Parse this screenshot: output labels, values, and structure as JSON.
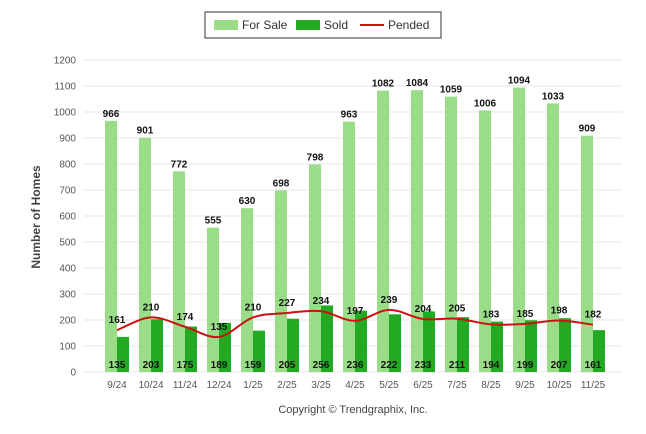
{
  "chart_data": {
    "type": "bar",
    "categories": [
      "9/24",
      "10/24",
      "11/24",
      "12/24",
      "1/25",
      "2/25",
      "3/25",
      "4/25",
      "5/25",
      "6/25",
      "7/25",
      "8/25",
      "9/25",
      "10/25",
      "11/25"
    ],
    "series": [
      {
        "name": "For Sale",
        "kind": "bar",
        "color": "#99dd88",
        "values": [
          966,
          901,
          772,
          555,
          630,
          698,
          798,
          963,
          1082,
          1084,
          1059,
          1006,
          1094,
          1033,
          909
        ]
      },
      {
        "name": "Sold",
        "kind": "bar",
        "color": "#22aa22",
        "values": [
          135,
          203,
          175,
          189,
          159,
          205,
          256,
          236,
          222,
          233,
          211,
          194,
          199,
          207,
          161
        ]
      },
      {
        "name": "Pended",
        "kind": "line",
        "color": "#cc1111",
        "values": [
          161,
          210,
          174,
          135,
          210,
          227,
          234,
          197,
          239,
          204,
          205,
          183,
          185,
          198,
          182
        ]
      }
    ],
    "ylabel": "Number of Homes",
    "ylim": [
      0,
      1200
    ],
    "yticks": [
      0,
      100,
      200,
      300,
      400,
      500,
      600,
      700,
      800,
      900,
      1000,
      1100,
      1200
    ],
    "grid": true,
    "legend_position": "top-center"
  },
  "footer": {
    "copyright": "Copyright © Trendgraphix, Inc."
  }
}
